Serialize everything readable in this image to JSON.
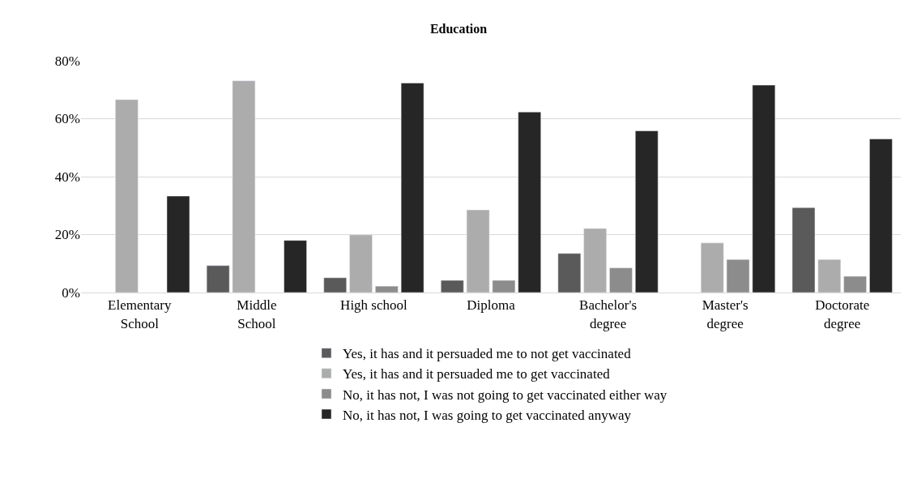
{
  "chart_data": {
    "type": "bar",
    "title": "Education",
    "categories": [
      "Elementary School",
      "Middle School",
      "High school",
      "Diploma",
      "Bachelor's degree",
      "Master's degree",
      "Doctorate degree"
    ],
    "series": [
      {
        "name": "Yes, it has and it persuaded me to not get vaccinated",
        "color": "#5a5a5a",
        "values": [
          null,
          9.3,
          5.1,
          4.2,
          13.5,
          null,
          29.3
        ]
      },
      {
        "name": "Yes, it has and it persuaded me to get vaccinated",
        "color": "#acacac",
        "values": [
          66.6,
          73.1,
          19.9,
          28.5,
          22.1,
          17.1,
          11.4
        ]
      },
      {
        "name": "No, it has not, I was not going to get vaccinated either way",
        "color": "#8c8c8c",
        "values": [
          null,
          null,
          2.2,
          4.2,
          8.5,
          11.4,
          5.6
        ]
      },
      {
        "name": "No, it has not, I was going to get vaccinated anyway",
        "color": "#262626",
        "values": [
          33.3,
          18.0,
          72.3,
          62.3,
          55.8,
          71.6,
          53.0
        ]
      }
    ],
    "ylim": [
      0,
      80
    ],
    "yticks": [
      {
        "value": 0,
        "label": "0%"
      },
      {
        "value": 20,
        "label": "20%"
      },
      {
        "value": 40,
        "label": "40%"
      },
      {
        "value": 60,
        "label": "60%"
      },
      {
        "value": 80,
        "label": "80%"
      }
    ],
    "grid": "y",
    "legend": "bottom"
  }
}
